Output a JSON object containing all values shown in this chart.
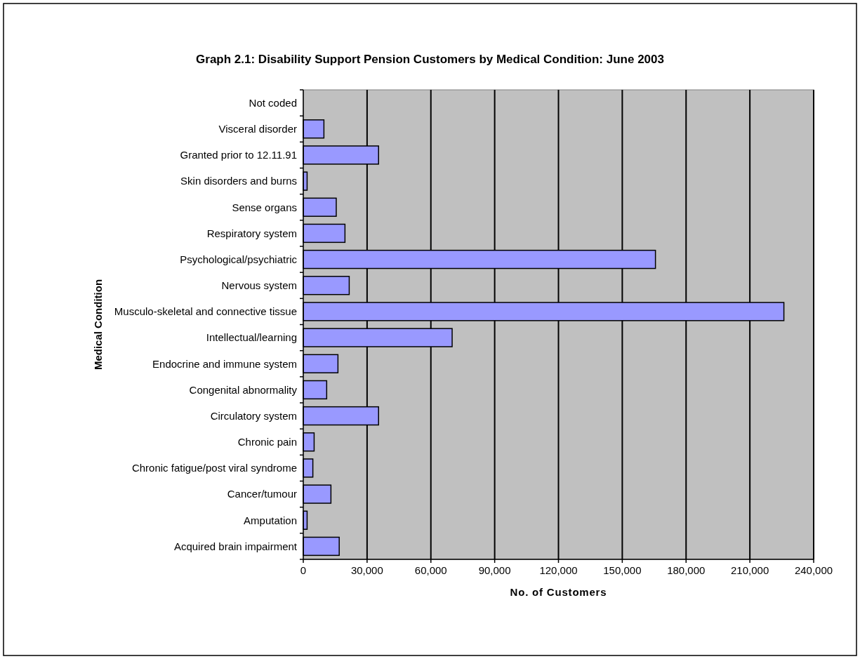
{
  "chart_data": {
    "type": "bar",
    "orientation": "horizontal",
    "title": "Graph 2.1: Disability Support Pension Customers by Medical Condition: June 2003",
    "xlabel": "No. of Customers",
    "ylabel": "Medical Condition",
    "categories": [
      "Not coded",
      "Visceral disorder",
      "Granted prior to 12.11.91",
      "Skin disorders and burns",
      "Sense organs",
      "Respiratory system",
      "Psychological/psychiatric",
      "Nervous system",
      "Musculo-skeletal and connective tissue",
      "Intellectual/learning",
      "Endocrine and immune system",
      "Congenital abnormality",
      "Circulatory system",
      "Chronic pain",
      "Chronic fatigue/post viral syndrome",
      "Cancer/tumour",
      "Amputation",
      "Acquired brain impairment"
    ],
    "values": [
      0,
      9700,
      35400,
      1800,
      15500,
      19600,
      165600,
      21600,
      226000,
      70000,
      16300,
      11000,
      35400,
      5100,
      4500,
      13000,
      1800,
      16900
    ],
    "color": "#9999ff",
    "xlim": [
      0,
      240000
    ],
    "xticks": [
      {
        "value": 0,
        "label": "0"
      },
      {
        "value": 30000,
        "label": "30,000"
      },
      {
        "value": 60000,
        "label": "60,000"
      },
      {
        "value": 90000,
        "label": "90,000"
      },
      {
        "value": 120000,
        "label": "120,000"
      },
      {
        "value": 150000,
        "label": "150,000"
      },
      {
        "value": 180000,
        "label": "180,000"
      },
      {
        "value": 210000,
        "label": "210,000"
      },
      {
        "value": 240000,
        "label": "240,000"
      }
    ],
    "grid": "x"
  }
}
